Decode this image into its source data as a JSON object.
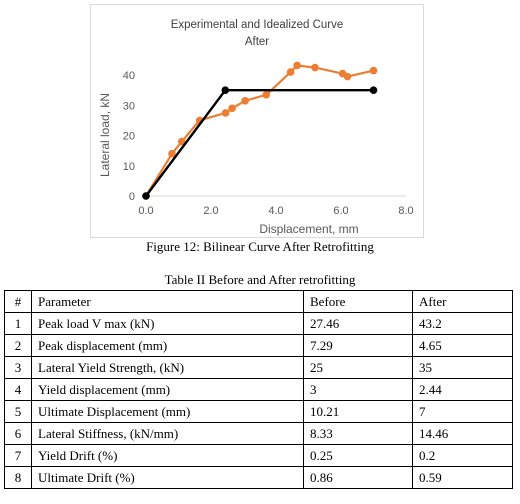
{
  "figure": {
    "caption": "Figure 12: Bilinear Curve After Retrofitting"
  },
  "chart_data": {
    "type": "line",
    "title": "Experimental and Idealized Curve",
    "subtitle": "After",
    "xlabel": "Displacement, mm",
    "ylabel": "Lateral load, kN",
    "xlim": [
      0,
      8
    ],
    "ylim": [
      0,
      45
    ],
    "x_ticks": [
      "0.0",
      "2.0",
      "4.0",
      "6.0",
      "8.0"
    ],
    "y_ticks": [
      "0",
      "10",
      "20",
      "30",
      "40"
    ],
    "grid": false,
    "series": [
      {
        "color": "#ED7D31",
        "points": [
          [
            0,
            0
          ],
          [
            0.8,
            14
          ],
          [
            1.1,
            18
          ],
          [
            1.65,
            25
          ],
          [
            2.45,
            27.5
          ],
          [
            2.65,
            29
          ],
          [
            3.05,
            31.5
          ],
          [
            3.7,
            33.5
          ],
          [
            4.45,
            41
          ],
          [
            4.65,
            43.2
          ],
          [
            5.2,
            42.5
          ],
          [
            6.05,
            40.5
          ],
          [
            6.2,
            39.5
          ],
          [
            7.0,
            41.5
          ]
        ]
      },
      {
        "color": "#000000",
        "points": [
          [
            0,
            0
          ],
          [
            2.44,
            35
          ],
          [
            7.0,
            35
          ]
        ]
      }
    ]
  },
  "table": {
    "caption": "Table II Before and After retrofitting",
    "headers": [
      "#",
      "Parameter",
      "Before",
      "After"
    ],
    "rows": [
      [
        "1",
        "Peak load V max (kN)",
        "27.46",
        "43.2"
      ],
      [
        "2",
        "Peak displacement (mm)",
        "7.29",
        "4.65"
      ],
      [
        "3",
        "Lateral Yield Strength, (kN)",
        "25",
        "35"
      ],
      [
        "4",
        "Yield displacement (mm)",
        "3",
        "2.44"
      ],
      [
        "5",
        "Ultimate Displacement (mm)",
        "10.21",
        "7"
      ],
      [
        "6",
        "Lateral Stiffness, (kN/mm)",
        "8.33",
        "14.46"
      ],
      [
        "7",
        "Yield Drift (%)",
        "0.25",
        "0.2"
      ],
      [
        "8",
        "Ultimate Drift (%)",
        "0.86",
        "0.59"
      ]
    ]
  }
}
